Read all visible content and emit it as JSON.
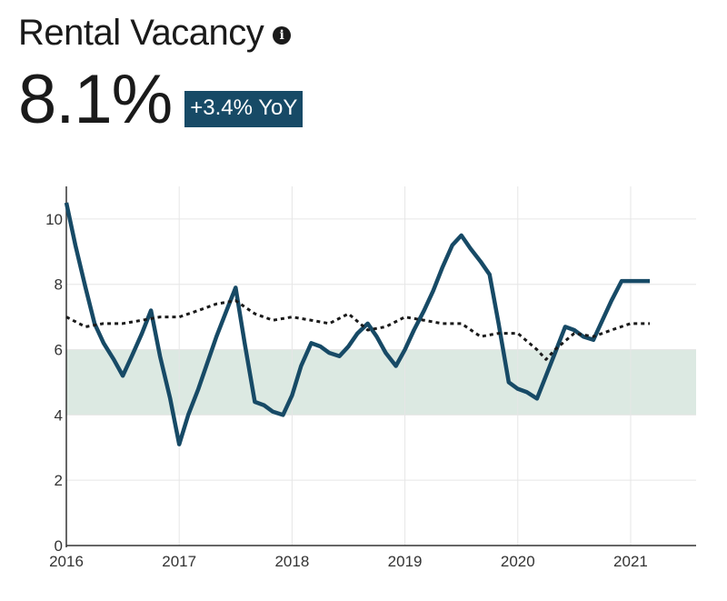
{
  "header": {
    "title": "Rental Vacancy",
    "info_icon": "info-icon",
    "value": "8.1%",
    "change": "+3.4% YoY"
  },
  "colors": {
    "series": "#174a66",
    "reference": "#1a1a1a",
    "band": "#dce9e2",
    "grid": "#e6e6e6",
    "badge": "#174a66"
  },
  "chart_data": {
    "type": "line",
    "title": "Rental Vacancy",
    "xlabel": "",
    "ylabel": "",
    "xlim": [
      2016,
      2021.58
    ],
    "ylim": [
      0,
      11
    ],
    "x_ticks": [
      2016,
      2017,
      2018,
      2019,
      2020,
      2021
    ],
    "x_tick_labels": [
      "2016",
      "2017",
      "2018",
      "2019",
      "2020",
      "2021"
    ],
    "y_ticks": [
      0,
      2,
      4,
      6,
      8,
      10
    ],
    "y_tick_labels": [
      "0",
      "2",
      "4",
      "6",
      "8",
      "10"
    ],
    "grid": true,
    "band": {
      "from": 4,
      "to": 6
    },
    "series": [
      {
        "style": "solid",
        "x": [
          2016.0,
          2016.08,
          2016.17,
          2016.25,
          2016.33,
          2016.42,
          2016.5,
          2016.58,
          2016.67,
          2016.75,
          2016.83,
          2016.92,
          2017.0,
          2017.08,
          2017.17,
          2017.25,
          2017.33,
          2017.42,
          2017.5,
          2017.58,
          2017.67,
          2017.75,
          2017.83,
          2017.92,
          2018.0,
          2018.08,
          2018.17,
          2018.25,
          2018.33,
          2018.42,
          2018.5,
          2018.58,
          2018.67,
          2018.75,
          2018.83,
          2018.92,
          2019.0,
          2019.08,
          2019.17,
          2019.25,
          2019.33,
          2019.42,
          2019.5,
          2019.58,
          2019.67,
          2019.75,
          2019.83,
          2019.92,
          2020.0,
          2020.08,
          2020.17,
          2020.25,
          2020.33,
          2020.42,
          2020.5,
          2020.58,
          2020.67,
          2020.75,
          2020.83,
          2020.92,
          2021.0,
          2021.08,
          2021.17
        ],
        "values": [
          10.5,
          9.2,
          7.9,
          6.8,
          6.2,
          5.7,
          5.2,
          5.8,
          6.5,
          7.2,
          5.8,
          4.5,
          3.1,
          4.0,
          4.8,
          5.6,
          6.4,
          7.2,
          7.9,
          6.2,
          4.4,
          4.3,
          4.1,
          4.0,
          4.6,
          5.5,
          6.2,
          6.1,
          5.9,
          5.8,
          6.1,
          6.5,
          6.8,
          6.4,
          5.9,
          5.5,
          6.0,
          6.6,
          7.2,
          7.8,
          8.5,
          9.2,
          9.5,
          9.1,
          8.7,
          8.3,
          6.8,
          5.0,
          4.8,
          4.7,
          4.5,
          5.2,
          5.9,
          6.7,
          6.6,
          6.4,
          6.3,
          6.9,
          7.5,
          8.1,
          8.1,
          8.1,
          8.1
        ]
      },
      {
        "style": "dotted",
        "x": [
          2016.0,
          2016.17,
          2016.33,
          2016.5,
          2016.67,
          2016.83,
          2017.0,
          2017.17,
          2017.33,
          2017.5,
          2017.67,
          2017.83,
          2018.0,
          2018.17,
          2018.33,
          2018.5,
          2018.67,
          2018.83,
          2019.0,
          2019.17,
          2019.33,
          2019.5,
          2019.67,
          2019.83,
          2020.0,
          2020.17,
          2020.25,
          2020.33,
          2020.5,
          2020.67,
          2020.83,
          2021.0,
          2021.17
        ],
        "values": [
          7.0,
          6.7,
          6.8,
          6.8,
          6.9,
          7.0,
          7.0,
          7.2,
          7.4,
          7.5,
          7.1,
          6.9,
          7.0,
          6.9,
          6.8,
          7.1,
          6.6,
          6.7,
          7.0,
          6.9,
          6.8,
          6.8,
          6.4,
          6.5,
          6.5,
          6.0,
          5.7,
          6.0,
          6.5,
          6.4,
          6.6,
          6.8,
          6.8
        ]
      }
    ]
  }
}
